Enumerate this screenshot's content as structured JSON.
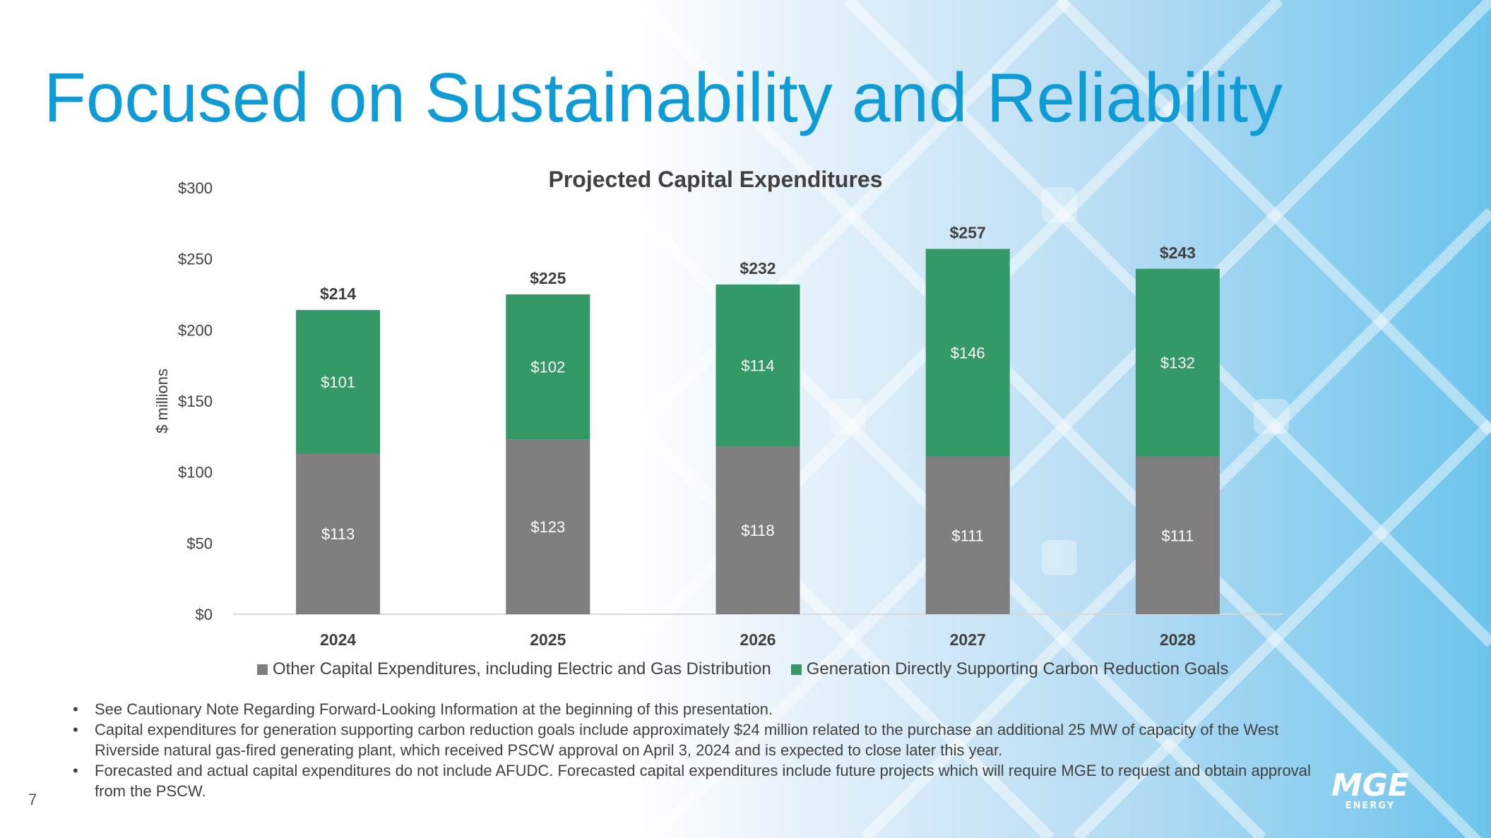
{
  "slide": {
    "title": "Focused on Sustainability and Reliability",
    "page_number": "7",
    "logo_text": "MGE ENERGY"
  },
  "chart_data": {
    "type": "bar",
    "stacked": true,
    "title": "Projected Capital Expenditures",
    "xlabel": "",
    "ylabel": "$ millions",
    "ylim": [
      0,
      300
    ],
    "yticks": [
      0,
      50,
      100,
      150,
      200,
      250,
      300
    ],
    "ytick_labels": [
      "$0",
      "$50",
      "$100",
      "$150",
      "$200",
      "$250",
      "$300"
    ],
    "categories": [
      "2024",
      "2025",
      "2026",
      "2027",
      "2028"
    ],
    "series": [
      {
        "name": "Other Capital Expenditures, including Electric and Gas Distribution",
        "color": "#7f7f7f",
        "values": [
          113,
          123,
          118,
          111,
          111
        ],
        "labels": [
          "$113",
          "$123",
          "$118",
          "$111",
          "$111"
        ]
      },
      {
        "name": "Generation Directly Supporting Carbon Reduction Goals",
        "color": "#339966",
        "values": [
          101,
          102,
          114,
          146,
          132
        ],
        "labels": [
          "$101",
          "$102",
          "$114",
          "$146",
          "$132"
        ]
      }
    ],
    "totals": [
      214,
      225,
      232,
      257,
      243
    ],
    "total_labels": [
      "$214",
      "$225",
      "$232",
      "$257",
      "$243"
    ],
    "legend_position": "bottom"
  },
  "notes": [
    "See Cautionary Note Regarding Forward-Looking Information at the beginning of this presentation.",
    "Capital expenditures for generation supporting carbon reduction goals include approximately $24 million related to the purchase an additional 25 MW of capacity of the West Riverside natural gas-fired generating plant, which received PSCW approval on April 3, 2024 and is expected to close later this year.",
    "Forecasted and actual capital expenditures do not include AFUDC. Forecasted capital expenditures include future projects which will require MGE to request and obtain approval from the PSCW."
  ]
}
